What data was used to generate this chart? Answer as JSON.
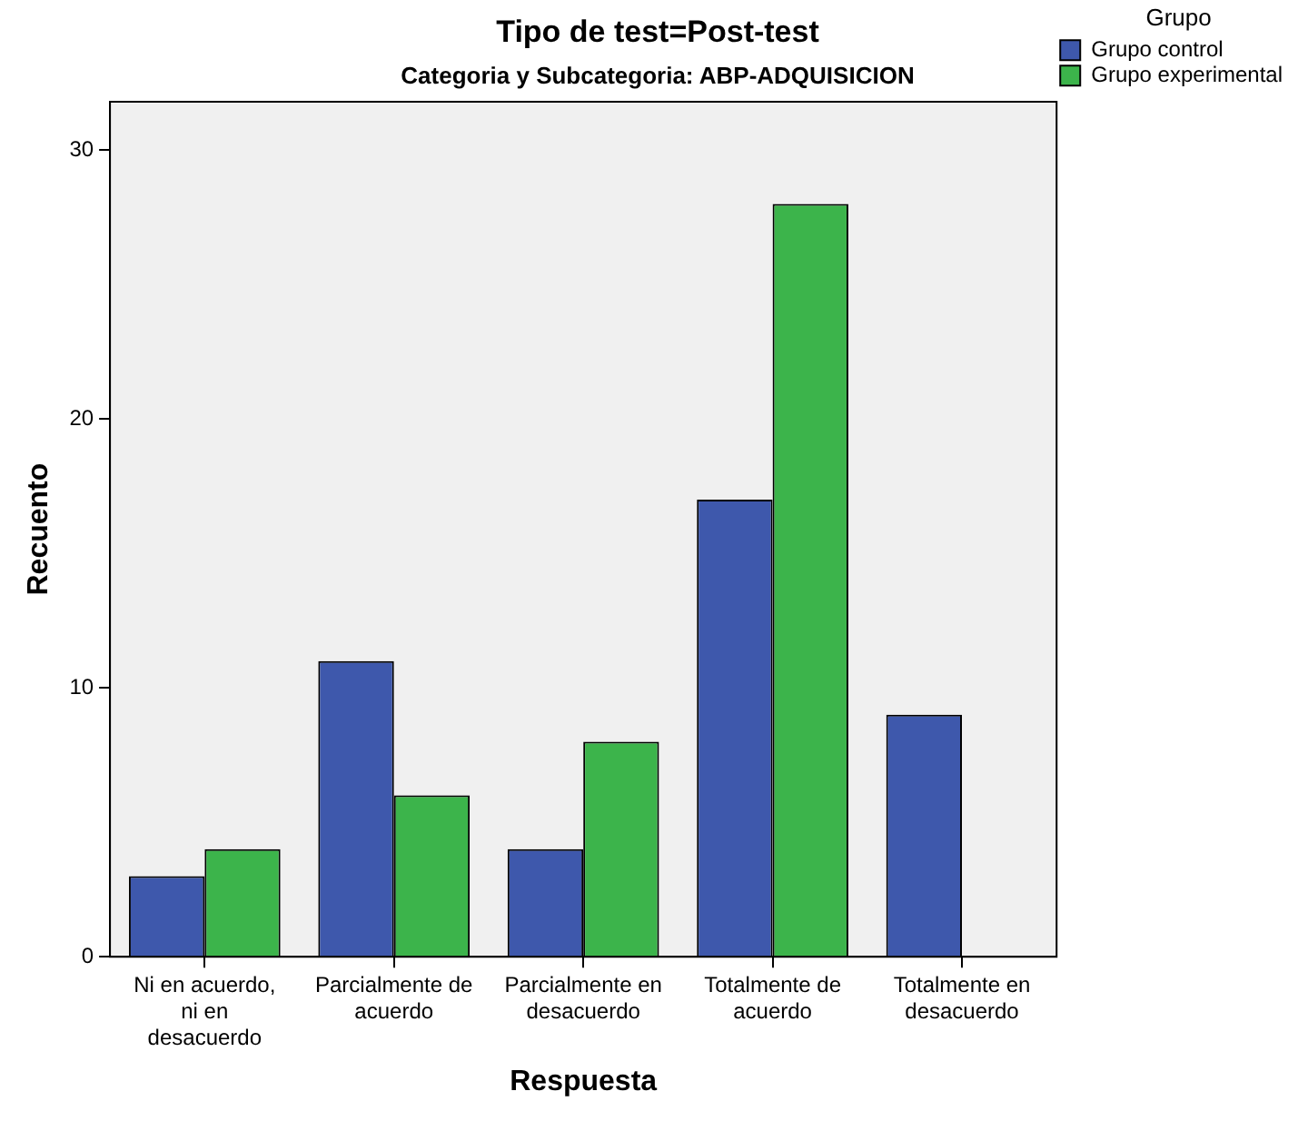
{
  "chart_data": {
    "type": "bar",
    "title": "Tipo de test=Post-test",
    "subtitle": "Categoria y Subcategoria: ABP-ADQUISICION",
    "xlabel": "Respuesta",
    "ylabel": "Recuento",
    "legend_title": "Grupo",
    "categories": [
      "Ni en acuerdo, ni en desacuerdo",
      "Parcialmente de acuerdo",
      "Parcialmente en desacuerdo",
      "Totalmente de acuerdo",
      "Totalmente en desacuerdo"
    ],
    "series": [
      {
        "name": "Grupo control",
        "color": "#3e58ac",
        "values": [
          3,
          11,
          4,
          17,
          9
        ]
      },
      {
        "name": "Grupo experimental",
        "color": "#3cb44b",
        "values": [
          4,
          6,
          8,
          28,
          0
        ]
      }
    ],
    "ylim": [
      0,
      31.8
    ],
    "yticks": [
      0,
      10,
      20,
      30
    ],
    "grid": false,
    "legend": "top right"
  }
}
